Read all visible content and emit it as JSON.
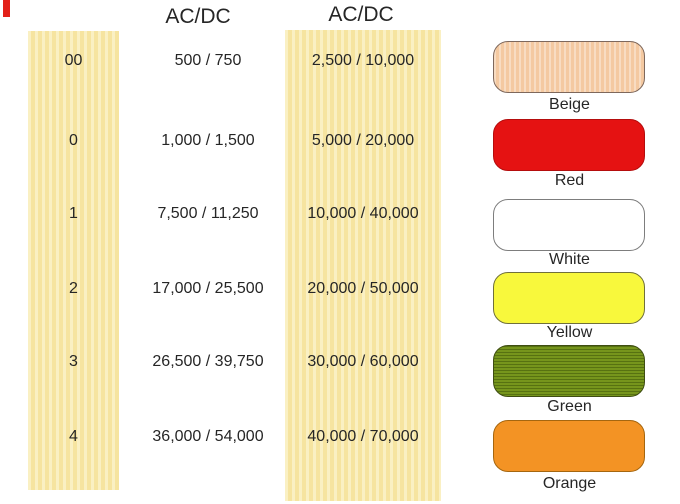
{
  "chart_data": {
    "type": "table",
    "columns": [
      "",
      "AC/DC",
      "AC/DC",
      ""
    ],
    "rows": [
      [
        "00",
        "500 / 750",
        "2,500 / 10,000",
        "Beige"
      ],
      [
        "0",
        "1,000 / 1,500",
        "5,000 / 20,000",
        "Red"
      ],
      [
        "1",
        "7,500 / 11,250",
        "10,000 / 40,000",
        "White"
      ],
      [
        "2",
        "17,000 / 25,500",
        "20,000 / 50,000",
        "Yellow"
      ],
      [
        "3",
        "26,500 / 39,750",
        "30,000 / 60,000",
        "Green"
      ],
      [
        "4",
        "36,000 / 54,000",
        "40,000 / 70,000",
        "Orange"
      ]
    ]
  },
  "headers": {
    "col2": "AC/DC",
    "col3": "AC/DC"
  },
  "table": {
    "rows": [
      {
        "class_label": "00",
        "col2": "500 / 750",
        "col3": "2,500 / 10,000"
      },
      {
        "class_label": "0",
        "col2": "1,000 / 1,500",
        "col3": "5,000 / 20,000"
      },
      {
        "class_label": "1",
        "col2": "7,500 / 11,250",
        "col3": "10,000 / 40,000"
      },
      {
        "class_label": "2",
        "col2": "17,000 / 25,500",
        "col3": "20,000 / 50,000"
      },
      {
        "class_label": "3",
        "col2": "26,500 / 39,750",
        "col3": "30,000 / 60,000"
      },
      {
        "class_label": "4",
        "col2": "36,000 / 54,000",
        "col3": "40,000 / 70,000"
      }
    ]
  },
  "swatches": [
    {
      "label": "Beige",
      "fill": "#f4c9a1",
      "border": "#7e685c",
      "texture": "vertical"
    },
    {
      "label": "Red",
      "fill": "#e51212",
      "border": "#b50d0d",
      "texture": "none"
    },
    {
      "label": "White",
      "fill": "#ffffff",
      "border": "#7d7d7d",
      "texture": "none"
    },
    {
      "label": "Yellow",
      "fill": "#f8f83c",
      "border": "#70703a",
      "texture": "none"
    },
    {
      "label": "Green",
      "fill": "#76951c",
      "border": "#3f4e12",
      "texture": "horizontal"
    },
    {
      "label": "Orange",
      "fill": "#f39324",
      "border": "#a5660f",
      "texture": "none"
    }
  ],
  "colors": {
    "band_base": "#f6e4a0",
    "band_stripe": "#faf0c3",
    "text": "#262626",
    "red_mark": "#e32119"
  }
}
